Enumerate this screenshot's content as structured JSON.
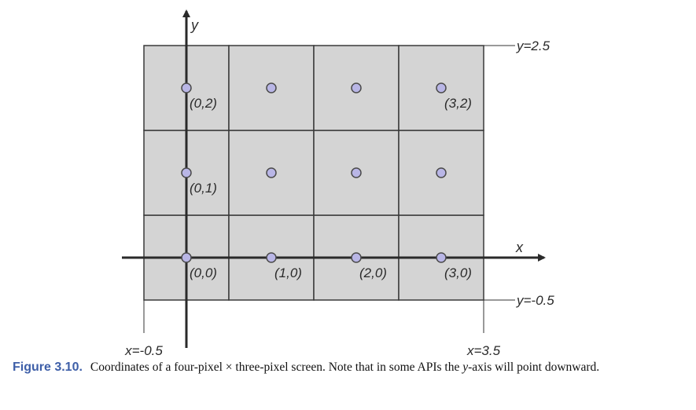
{
  "figure": {
    "x_axis_label": "x",
    "y_axis_label": "y",
    "boundaries": [
      {
        "label": "y=2.5",
        "axis": "y",
        "value": 2.5
      },
      {
        "label": "y=-0.5",
        "axis": "y",
        "value": -0.5
      },
      {
        "label": "x=-0.5",
        "axis": "x",
        "value": -0.5
      },
      {
        "label": "x=3.5",
        "axis": "x",
        "value": 3.5
      }
    ],
    "pixels": {
      "columns": 4,
      "rows": 3
    },
    "points": [
      {
        "x": 0,
        "y": 2,
        "label": "(0,2)"
      },
      {
        "x": 1,
        "y": 2,
        "label": ""
      },
      {
        "x": 2,
        "y": 2,
        "label": ""
      },
      {
        "x": 3,
        "y": 2,
        "label": "(3,2)"
      },
      {
        "x": 0,
        "y": 1,
        "label": "(0,1)"
      },
      {
        "x": 1,
        "y": 1,
        "label": ""
      },
      {
        "x": 2,
        "y": 1,
        "label": ""
      },
      {
        "x": 3,
        "y": 1,
        "label": ""
      },
      {
        "x": 0,
        "y": 0,
        "label": "(0,0)"
      },
      {
        "x": 1,
        "y": 0,
        "label": "(1,0)"
      },
      {
        "x": 2,
        "y": 0,
        "label": "(2,0)"
      },
      {
        "x": 3,
        "y": 0,
        "label": "(3,0)"
      }
    ],
    "colors": {
      "pixel_fill": "#d4d4d4",
      "grid_line": "#3a3a3a",
      "point_fill": "#b9b6e6",
      "point_stroke": "#4a4a4a"
    }
  },
  "caption": {
    "label": "Figure 3.10.",
    "text_before": "Coordinates of a four-pixel × three-pixel screen. Note that in some APIs the ",
    "text_italic": "y",
    "text_after": "-axis will point downward."
  }
}
